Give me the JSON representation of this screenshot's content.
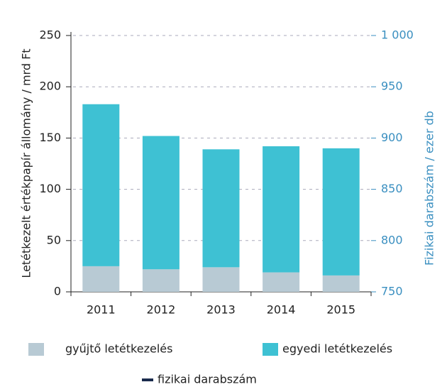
{
  "chart_data": {
    "type": "bar",
    "stacked": true,
    "categories": [
      "2011",
      "2012",
      "2013",
      "2014",
      "2015"
    ],
    "series": [
      {
        "name": "gyűjtő letétkezelés",
        "color": "#b8cad4",
        "values": [
          25,
          22,
          24,
          19,
          16
        ]
      },
      {
        "name": "egyedi letétkezelés",
        "color": "#3ec1d3",
        "values": [
          158,
          130,
          115,
          123,
          124
        ]
      },
      {
        "name": "fizikai darabszám",
        "color": "#1a2b4c",
        "type": "line",
        "axis": "y2",
        "values": [
          null,
          null,
          null,
          null,
          null
        ]
      }
    ],
    "ylabel": "Letétkezelt értékpapír állomány  /  mrd Ft",
    "y2label": "Fizikai darabszám  /  ezer db",
    "ylim": [
      0,
      250
    ],
    "yticks": [
      0,
      50,
      100,
      150,
      200,
      250
    ],
    "y2lim": [
      750,
      1000
    ],
    "y2ticks": [
      750,
      800,
      850,
      900,
      950,
      {
        "value": 1000,
        "label": "1 000"
      }
    ],
    "grid": true
  }
}
